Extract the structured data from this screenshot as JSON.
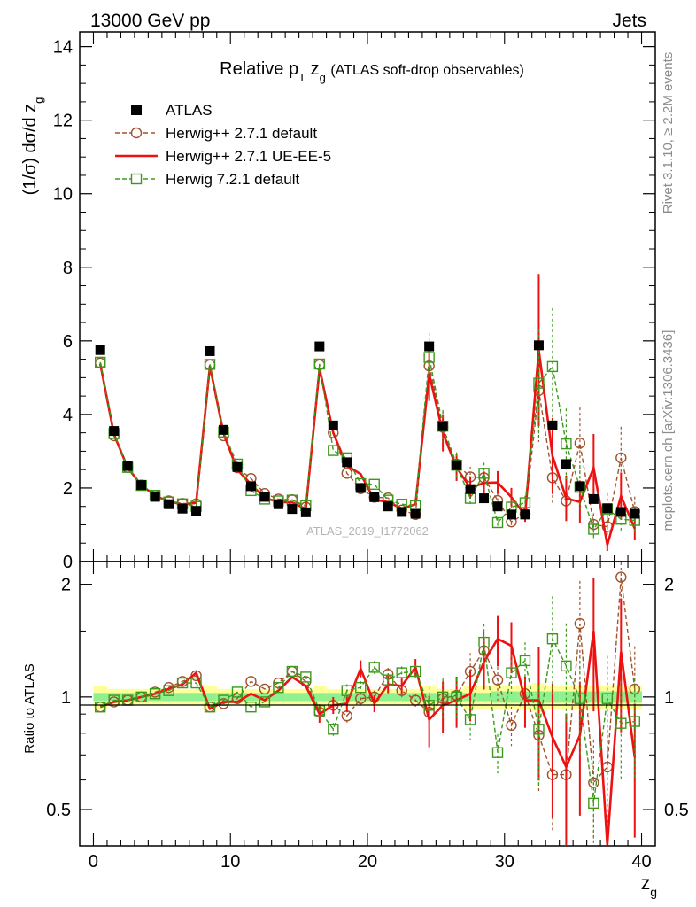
{
  "header": {
    "left": "13000 GeV pp",
    "right": "Jets"
  },
  "side_text": {
    "rivet": "Rivet 3.1.10, ≥ 2.2M events",
    "mcplots": "mcplots.cern.ch [arXiv:1306.3436]"
  },
  "watermark": "ATLAS_2019_I1772062",
  "chart_data": [
    {
      "type": "line",
      "panel": "main",
      "title": "Relative p_T z_g (ATLAS soft-drop observables)",
      "ylabel": "(1/σ) dσ/d z_g",
      "xlim": [
        -1,
        41
      ],
      "ylim": [
        0,
        14.4
      ],
      "yticks": [
        0,
        2,
        4,
        6,
        8,
        10,
        12,
        14
      ],
      "legend_position": "top-left",
      "x": [
        0.5,
        1.5,
        2.5,
        3.5,
        4.5,
        5.5,
        6.5,
        7.5,
        8.5,
        9.5,
        10.5,
        11.5,
        12.5,
        13.5,
        14.5,
        15.5,
        16.5,
        17.5,
        18.5,
        19.5,
        20.5,
        21.5,
        22.5,
        23.5,
        24.5,
        25.5,
        26.5,
        27.5,
        28.5,
        29.5,
        30.5,
        31.5,
        32.5,
        33.5,
        34.5,
        35.5,
        36.5,
        37.5,
        38.5,
        39.5
      ],
      "series": [
        {
          "name": "ATLAS",
          "style": "data",
          "color": "#000000",
          "values": [
            5.75,
            3.55,
            2.6,
            2.08,
            1.76,
            1.56,
            1.44,
            1.38,
            5.72,
            3.58,
            2.57,
            2.05,
            1.76,
            1.56,
            1.43,
            1.34,
            5.85,
            3.7,
            2.7,
            2.0,
            1.75,
            1.5,
            1.35,
            1.3,
            5.85,
            3.68,
            2.62,
            1.97,
            1.72,
            1.5,
            1.28,
            1.28,
            5.88,
            3.7,
            2.65,
            2.05,
            1.7,
            1.45,
            1.35,
            1.3
          ]
        },
        {
          "name": "Herwig++ 2.7.1 default",
          "style": "dashed-circle",
          "color": "#a0522d",
          "values": [
            5.4,
            3.42,
            2.56,
            2.08,
            1.8,
            1.65,
            1.58,
            1.57,
            5.35,
            3.42,
            2.55,
            2.26,
            1.85,
            1.7,
            1.68,
            1.48,
            5.35,
            3.5,
            2.4,
            1.98,
            1.75,
            1.73,
            1.4,
            1.28,
            5.32,
            3.65,
            2.65,
            2.3,
            2.28,
            1.66,
            1.08,
            1.3,
            4.65,
            2.28,
            1.65,
            3.22,
            1.01,
            0.95,
            2.82,
            1.36
          ]
        },
        {
          "name": "Herwig++ 2.7.1 UE-EE-5",
          "style": "solid",
          "color": "#ee1111",
          "values": [
            5.38,
            3.46,
            2.55,
            2.08,
            1.79,
            1.64,
            1.55,
            1.6,
            5.32,
            3.48,
            2.5,
            2.1,
            1.73,
            1.62,
            1.61,
            1.43,
            5.25,
            3.5,
            2.6,
            2.38,
            1.68,
            1.62,
            1.44,
            1.56,
            5.1,
            3.5,
            2.56,
            2.0,
            2.14,
            2.15,
            1.75,
            1.26,
            5.75,
            2.87,
            1.72,
            1.62,
            2.55,
            0.45,
            1.78,
            0.9
          ]
        },
        {
          "name": "Herwig 7.2.1 default",
          "style": "dashed-square",
          "color": "#3a9a1a",
          "values": [
            5.42,
            3.48,
            2.56,
            2.07,
            1.8,
            1.62,
            1.57,
            1.5,
            5.36,
            3.52,
            2.65,
            1.93,
            1.7,
            1.65,
            1.67,
            1.52,
            5.37,
            3.02,
            2.82,
            2.12,
            2.1,
            1.67,
            1.56,
            1.52,
            5.55,
            3.68,
            2.62,
            1.72,
            2.4,
            1.06,
            1.48,
            1.6,
            4.85,
            5.3,
            3.2,
            2.02,
            0.88,
            1.43,
            1.15,
            1.12
          ]
        }
      ]
    },
    {
      "type": "line",
      "panel": "ratio",
      "ylabel": "Ratio to ATLAS",
      "xlabel": "z_g",
      "xlim": [
        -1,
        41
      ],
      "ylim": [
        0.4,
        2.3
      ],
      "log_y": true,
      "yticks": [
        0.5,
        1,
        2
      ],
      "xticks": [
        0,
        10,
        20,
        30,
        40
      ],
      "bands": {
        "stat_color": "#8ff08f",
        "total_color": "#ffff99"
      },
      "series": [
        {
          "name": "Herwig++ 2.7.1 default",
          "color": "#a0522d",
          "values": [
            0.94,
            0.97,
            0.98,
            1.0,
            1.03,
            1.06,
            1.1,
            1.14,
            0.94,
            0.96,
            0.99,
            1.1,
            1.05,
            1.09,
            1.17,
            1.1,
            0.91,
            0.95,
            0.89,
            0.99,
            1.0,
            1.15,
            1.04,
            0.98,
            0.91,
            0.99,
            1.01,
            1.17,
            1.33,
            1.11,
            0.84,
            1.02,
            0.79,
            0.62,
            0.62,
            1.57,
            0.59,
            0.65,
            2.09,
            1.05
          ]
        },
        {
          "name": "Herwig++ 2.7.1 UE-EE-5",
          "color": "#ee1111",
          "values": [
            0.94,
            0.97,
            0.98,
            1.0,
            1.02,
            1.05,
            1.08,
            1.16,
            0.93,
            0.97,
            0.97,
            1.02,
            0.98,
            1.04,
            1.13,
            1.07,
            0.9,
            0.95,
            0.96,
            1.19,
            0.96,
            1.08,
            1.07,
            1.2,
            0.87,
            0.95,
            0.98,
            1.02,
            1.24,
            1.43,
            1.37,
            0.98,
            0.98,
            0.78,
            0.65,
            0.79,
            1.5,
            0.31,
            1.32,
            0.69
          ]
        },
        {
          "name": "Herwig 7.2.1 default",
          "color": "#3a9a1a",
          "values": [
            0.94,
            0.98,
            0.98,
            1.0,
            1.02,
            1.04,
            1.09,
            1.09,
            0.94,
            0.98,
            1.03,
            0.94,
            0.97,
            1.06,
            1.17,
            1.13,
            0.92,
            0.82,
            1.04,
            1.06,
            1.2,
            1.11,
            1.16,
            1.17,
            0.95,
            1.0,
            1.0,
            0.87,
            1.4,
            0.71,
            1.16,
            1.25,
            0.82,
            1.43,
            1.21,
            0.99,
            0.52,
            0.99,
            0.85,
            0.86
          ]
        }
      ]
    }
  ]
}
